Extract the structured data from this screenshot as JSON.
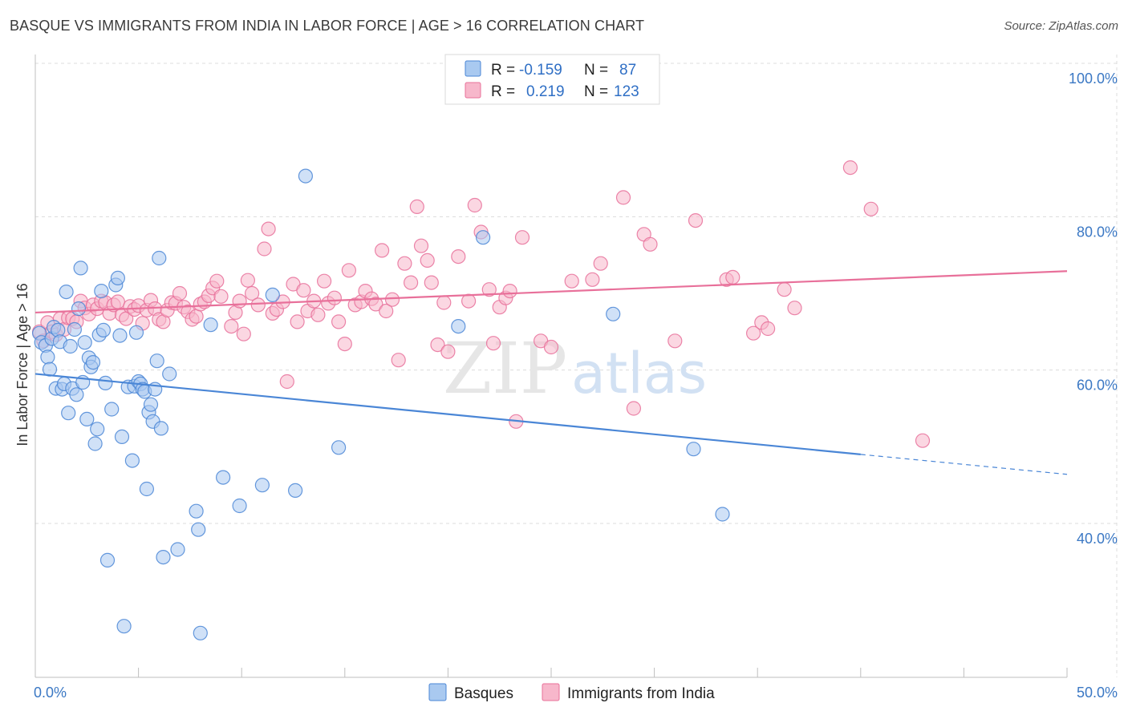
{
  "title": "BASQUE VS IMMIGRANTS FROM INDIA IN LABOR FORCE | AGE > 16 CORRELATION CHART",
  "source": "Source: ZipAtlas.com",
  "watermark": {
    "zip": "ZIP",
    "atlas": "atlas"
  },
  "legend": {
    "r_label": "R =",
    "n_label": "N =",
    "rows": [
      {
        "r": "-0.159",
        "n": "87",
        "color": "#a9c9f0"
      },
      {
        "r": "0.219",
        "n": "123",
        "color": "#f7b7cb"
      }
    ]
  },
  "bottom_legend": [
    "Basques",
    "Immigrants from India"
  ],
  "chart_data": {
    "type": "scatter",
    "xlabel": "",
    "ylabel": "In Labor Force | Age > 16",
    "xlim": [
      0,
      52
    ],
    "ylim": [
      22,
      103
    ],
    "x_ticks": [
      {
        "value": 0,
        "label": "0.0%"
      },
      {
        "value": 50,
        "label": "50.0%"
      }
    ],
    "y_ticks": [
      {
        "value": 100,
        "label": "100.0%"
      },
      {
        "value": 80,
        "label": "80.0%"
      },
      {
        "value": 60,
        "label": "60.0%"
      },
      {
        "value": 40,
        "label": "40.0%"
      }
    ],
    "grid": true,
    "legend_position": "top-center",
    "series": [
      {
        "name": "Basques",
        "color": "#4a86d6",
        "fill": "#a9c9f0",
        "trend": {
          "x0": 0,
          "y0": 59.5,
          "x1": 40,
          "y1": 49.0,
          "dash_x1": 50,
          "dash_y1": 46.4
        },
        "points": [
          [
            0.2,
            64.8
          ],
          [
            0.3,
            63.6
          ],
          [
            0.5,
            63.2
          ],
          [
            0.6,
            61.7
          ],
          [
            0.7,
            60.1
          ],
          [
            0.8,
            64.1
          ],
          [
            0.9,
            65.6
          ],
          [
            1.0,
            57.6
          ],
          [
            1.1,
            65.2
          ],
          [
            1.2,
            63.7
          ],
          [
            1.3,
            57.5
          ],
          [
            1.4,
            58.2
          ],
          [
            1.5,
            70.2
          ],
          [
            1.6,
            54.4
          ],
          [
            1.7,
            63.1
          ],
          [
            1.8,
            57.6
          ],
          [
            1.9,
            65.3
          ],
          [
            2.0,
            56.8
          ],
          [
            2.1,
            68.0
          ],
          [
            2.2,
            73.3
          ],
          [
            2.3,
            58.4
          ],
          [
            2.4,
            63.6
          ],
          [
            2.5,
            53.6
          ],
          [
            2.6,
            61.6
          ],
          [
            2.7,
            60.4
          ],
          [
            2.8,
            61.0
          ],
          [
            2.9,
            50.4
          ],
          [
            3.0,
            52.3
          ],
          [
            3.1,
            64.6
          ],
          [
            3.2,
            70.3
          ],
          [
            3.3,
            65.2
          ],
          [
            3.4,
            58.3
          ],
          [
            3.5,
            35.2
          ],
          [
            3.7,
            54.9
          ],
          [
            3.9,
            71.1
          ],
          [
            4.0,
            72.0
          ],
          [
            4.1,
            64.5
          ],
          [
            4.2,
            51.3
          ],
          [
            4.3,
            26.6
          ],
          [
            4.5,
            57.8
          ],
          [
            4.7,
            48.2
          ],
          [
            4.8,
            57.9
          ],
          [
            4.9,
            64.9
          ],
          [
            5.0,
            58.5
          ],
          [
            5.1,
            58.2
          ],
          [
            5.2,
            57.5
          ],
          [
            5.3,
            57.2
          ],
          [
            5.4,
            44.5
          ],
          [
            5.5,
            54.5
          ],
          [
            5.6,
            55.5
          ],
          [
            5.7,
            53.3
          ],
          [
            5.8,
            57.5
          ],
          [
            5.9,
            61.2
          ],
          [
            6.0,
            74.6
          ],
          [
            6.1,
            52.4
          ],
          [
            6.2,
            35.6
          ],
          [
            6.5,
            59.5
          ],
          [
            6.9,
            36.6
          ],
          [
            7.8,
            41.6
          ],
          [
            7.9,
            39.2
          ],
          [
            8.0,
            25.7
          ],
          [
            8.5,
            65.9
          ],
          [
            9.1,
            46.0
          ],
          [
            9.9,
            42.3
          ],
          [
            11.0,
            45.0
          ],
          [
            11.5,
            69.8
          ],
          [
            12.6,
            44.3
          ],
          [
            13.1,
            85.3
          ],
          [
            14.7,
            49.9
          ],
          [
            20.5,
            65.7
          ],
          [
            21.7,
            77.3
          ],
          [
            28.0,
            67.3
          ],
          [
            31.9,
            49.7
          ],
          [
            33.3,
            41.2
          ]
        ]
      },
      {
        "name": "Immigrants from India",
        "color": "#e8709a",
        "fill": "#f7b7cb",
        "trend": {
          "x0": 0,
          "y0": 67.5,
          "x1": 50,
          "y1": 72.9
        },
        "points": [
          [
            0.2,
            65.0
          ],
          [
            0.4,
            63.8
          ],
          [
            0.6,
            66.2
          ],
          [
            0.8,
            65.0
          ],
          [
            1.0,
            64.6
          ],
          [
            1.2,
            66.7
          ],
          [
            1.4,
            65.3
          ],
          [
            1.6,
            66.8
          ],
          [
            1.8,
            66.7
          ],
          [
            2.0,
            66.3
          ],
          [
            2.2,
            69.0
          ],
          [
            2.4,
            68.1
          ],
          [
            2.6,
            67.3
          ],
          [
            2.8,
            68.5
          ],
          [
            3.0,
            68.0
          ],
          [
            3.2,
            69.0
          ],
          [
            3.4,
            68.8
          ],
          [
            3.6,
            67.4
          ],
          [
            3.8,
            68.5
          ],
          [
            4.0,
            68.9
          ],
          [
            4.2,
            67.2
          ],
          [
            4.4,
            66.7
          ],
          [
            4.6,
            68.3
          ],
          [
            4.8,
            67.9
          ],
          [
            5.0,
            68.4
          ],
          [
            5.2,
            66.1
          ],
          [
            5.4,
            67.8
          ],
          [
            5.6,
            69.1
          ],
          [
            5.8,
            68.0
          ],
          [
            6.0,
            66.6
          ],
          [
            6.2,
            66.3
          ],
          [
            6.4,
            67.8
          ],
          [
            6.6,
            68.8
          ],
          [
            6.8,
            68.7
          ],
          [
            7.0,
            70.0
          ],
          [
            7.2,
            68.2
          ],
          [
            7.4,
            67.6
          ],
          [
            7.6,
            66.6
          ],
          [
            7.8,
            67.0
          ],
          [
            8.0,
            68.6
          ],
          [
            8.2,
            68.9
          ],
          [
            8.4,
            69.7
          ],
          [
            8.6,
            70.7
          ],
          [
            8.8,
            71.6
          ],
          [
            9.0,
            69.6
          ],
          [
            9.5,
            65.7
          ],
          [
            9.7,
            67.5
          ],
          [
            9.9,
            69.0
          ],
          [
            10.1,
            64.7
          ],
          [
            10.3,
            71.7
          ],
          [
            10.5,
            70.0
          ],
          [
            10.8,
            68.5
          ],
          [
            11.1,
            75.8
          ],
          [
            11.3,
            78.4
          ],
          [
            11.5,
            67.4
          ],
          [
            11.7,
            67.9
          ],
          [
            12.0,
            68.9
          ],
          [
            12.2,
            58.5
          ],
          [
            12.5,
            71.2
          ],
          [
            12.7,
            66.3
          ],
          [
            13.0,
            70.4
          ],
          [
            13.2,
            67.7
          ],
          [
            13.5,
            69.0
          ],
          [
            13.7,
            67.2
          ],
          [
            14.0,
            71.6
          ],
          [
            14.2,
            68.7
          ],
          [
            14.5,
            69.4
          ],
          [
            14.7,
            66.3
          ],
          [
            15.0,
            63.4
          ],
          [
            15.2,
            73.0
          ],
          [
            15.5,
            68.5
          ],
          [
            15.8,
            68.9
          ],
          [
            16.0,
            70.3
          ],
          [
            16.3,
            69.3
          ],
          [
            16.5,
            68.6
          ],
          [
            16.8,
            75.6
          ],
          [
            17.0,
            67.7
          ],
          [
            17.3,
            69.2
          ],
          [
            17.6,
            61.3
          ],
          [
            17.9,
            73.9
          ],
          [
            18.2,
            71.4
          ],
          [
            18.5,
            81.3
          ],
          [
            18.7,
            76.2
          ],
          [
            19.0,
            74.3
          ],
          [
            19.2,
            71.4
          ],
          [
            19.5,
            63.3
          ],
          [
            19.8,
            68.8
          ],
          [
            20.0,
            62.4
          ],
          [
            20.5,
            74.8
          ],
          [
            21.0,
            69.0
          ],
          [
            21.3,
            81.5
          ],
          [
            21.6,
            78.0
          ],
          [
            22.0,
            70.5
          ],
          [
            22.2,
            63.5
          ],
          [
            22.5,
            68.2
          ],
          [
            22.8,
            69.4
          ],
          [
            23.0,
            70.3
          ],
          [
            23.3,
            53.3
          ],
          [
            23.6,
            77.3
          ],
          [
            24.5,
            63.8
          ],
          [
            25.0,
            63.0
          ],
          [
            26.0,
            71.6
          ],
          [
            27.0,
            71.8
          ],
          [
            27.4,
            73.9
          ],
          [
            28.5,
            82.5
          ],
          [
            29.0,
            55.0
          ],
          [
            29.5,
            77.7
          ],
          [
            29.8,
            76.4
          ],
          [
            31.0,
            63.8
          ],
          [
            32.0,
            79.5
          ],
          [
            33.5,
            71.8
          ],
          [
            33.8,
            72.1
          ],
          [
            34.8,
            64.8
          ],
          [
            35.2,
            66.2
          ],
          [
            35.5,
            65.4
          ],
          [
            36.3,
            70.5
          ],
          [
            36.8,
            68.1
          ],
          [
            39.5,
            86.4
          ],
          [
            40.5,
            81.0
          ],
          [
            43.0,
            50.8
          ]
        ]
      }
    ]
  }
}
